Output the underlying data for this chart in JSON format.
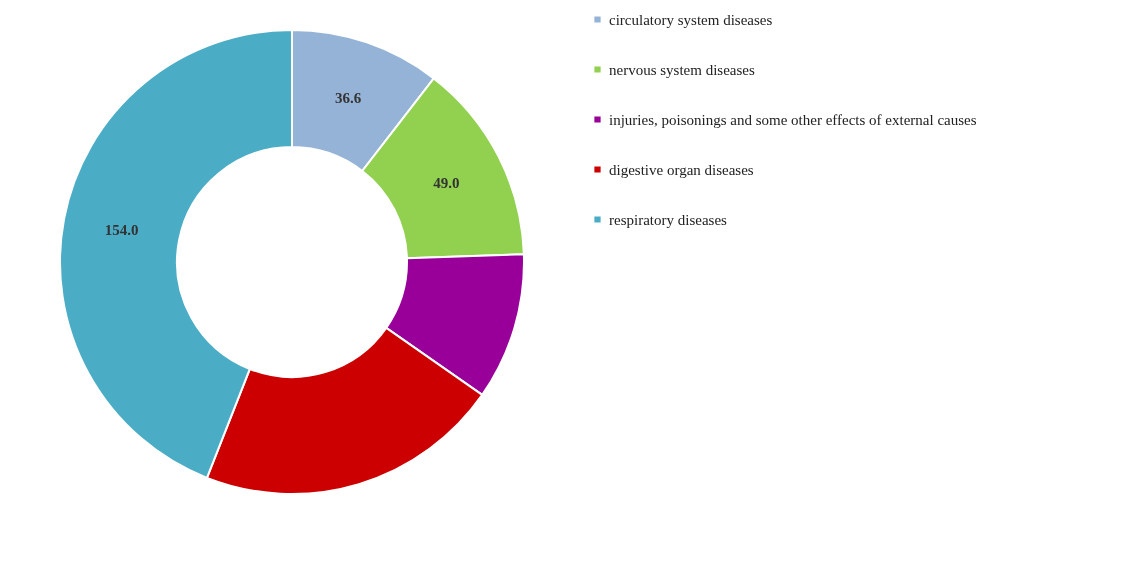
{
  "chart_data": {
    "type": "donut",
    "categories": [
      "circulatory system diseases",
      "nervous system diseases",
      "injuries, poisonings and some other effects of external causes",
      "digestive organ diseases",
      "respiratory diseases"
    ],
    "values": [
      36.6,
      49.0,
      35.8,
      74.4,
      154.0
    ],
    "value_labels": [
      "36.6",
      "49.0",
      null,
      null,
      "154.0"
    ],
    "colors": [
      "#95b3d7",
      "#92d050",
      "#990099",
      "#cc0000",
      "#4bacc6"
    ],
    "legend": "right"
  }
}
